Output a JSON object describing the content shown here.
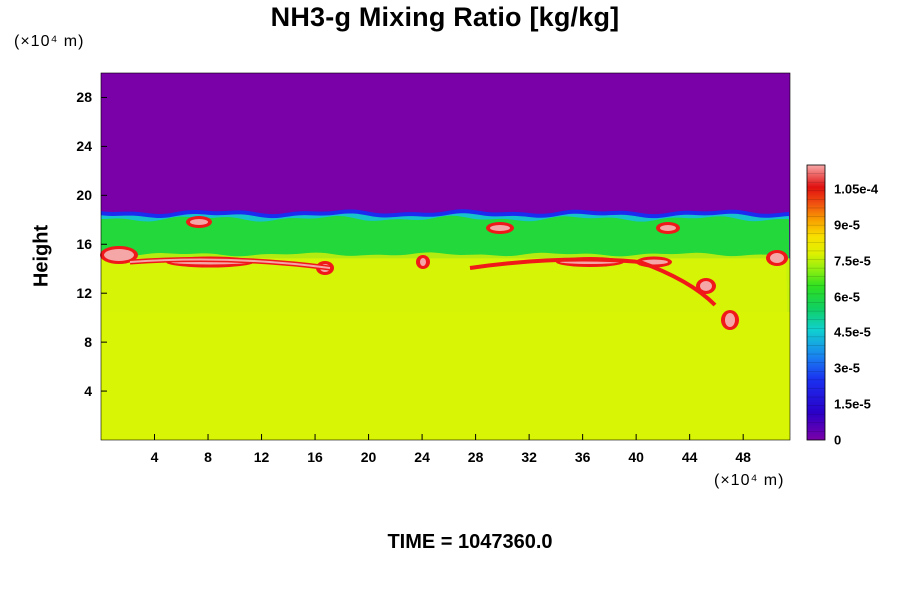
{
  "chart_data": {
    "type": "heatmap",
    "title": "NH3-g Mixing Ratio [kg/kg]",
    "ylabel": "Height",
    "xunit": "(×10⁴ m)",
    "yunit": "(×10⁴ m)",
    "xlim": [
      0,
      51.5
    ],
    "ylim": [
      0,
      30
    ],
    "x_ticks": [
      "4",
      "8",
      "12",
      "16",
      "20",
      "24",
      "28",
      "32",
      "36",
      "40",
      "44",
      "48"
    ],
    "y_ticks": [
      "4",
      "8",
      "12",
      "16",
      "20",
      "24",
      "28"
    ],
    "x_tick_values": [
      4,
      8,
      12,
      16,
      20,
      24,
      28,
      32,
      36,
      40,
      44,
      48
    ],
    "y_tick_values": [
      4,
      8,
      12,
      16,
      20,
      24,
      28
    ],
    "colorbar": {
      "min": 0,
      "max": 0.000115,
      "tick_labels": [
        "1.05e-4",
        "9e-5",
        "7.5e-5",
        "6e-5",
        "4.5e-5",
        "3e-5",
        "1.5e-5",
        "0"
      ],
      "tick_values": [
        0.000105,
        9e-05,
        7.5e-05,
        6e-05,
        4.5e-05,
        3e-05,
        1.5e-05,
        0
      ]
    },
    "regions": [
      {
        "height_range": [
          0,
          10.5
        ],
        "value": 7.5e-05
      },
      {
        "height_range": [
          10.5,
          15.5
        ],
        "value": 7.5e-05
      },
      {
        "height_range": [
          15.5,
          18.5
        ],
        "value": 6e-05
      },
      {
        "height_range": [
          18.5,
          30
        ],
        "value": 0
      }
    ],
    "time_label": "TIME = 1047360.0"
  },
  "colors": {
    "background": "#7a00a8",
    "bulk": "#d9f506",
    "green": "#22d83a",
    "cyan": "#16c2cc",
    "blue": "#1a2cf0",
    "red": "#f01818",
    "pink": "#f5a6a6",
    "yellow_green": "#b4ec12"
  }
}
